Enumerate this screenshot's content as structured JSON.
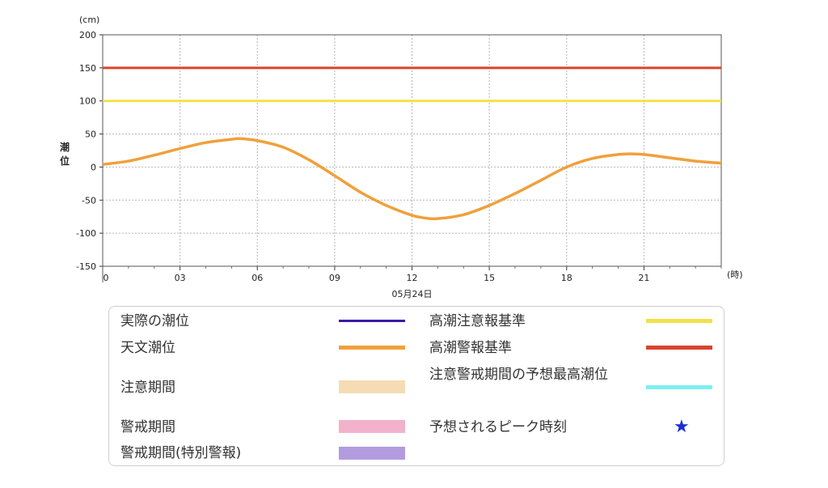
{
  "chart_data": {
    "type": "line",
    "ylabel": "潮位",
    "y_unit": "(cm)",
    "x_unit": "(時)",
    "date_label": "05月24日",
    "ylim": [
      -150,
      200
    ],
    "xlim": [
      0,
      24
    ],
    "y_ticks": [
      200,
      150,
      100,
      50,
      0,
      -50,
      -100,
      -150
    ],
    "x_ticks": [
      {
        "v": 0,
        "label": "0"
      },
      {
        "v": 3,
        "label": "03"
      },
      {
        "v": 6,
        "label": "06"
      },
      {
        "v": 9,
        "label": "09"
      },
      {
        "v": 12,
        "label": "12"
      },
      {
        "v": 15,
        "label": "15"
      },
      {
        "v": 18,
        "label": "18"
      },
      {
        "v": 21,
        "label": "21"
      }
    ],
    "grid": true,
    "thresholds": [
      {
        "name": "高潮警報基準",
        "value": 150,
        "color": "#d9432c"
      },
      {
        "name": "高潮注意報基準",
        "value": 100,
        "color": "#f1e24a"
      }
    ],
    "series": [
      {
        "name": "天文潮位",
        "color": "#f0a03c",
        "x": [
          0,
          1,
          2,
          3,
          4,
          5,
          5.3,
          6,
          7,
          8,
          9,
          10,
          11,
          12,
          12.5,
          13,
          14,
          15,
          16,
          17,
          18,
          19,
          20,
          20.5,
          21,
          22,
          23,
          24
        ],
        "y": [
          4,
          9,
          18,
          28,
          37,
          42,
          43,
          40,
          30,
          11,
          -13,
          -38,
          -58,
          -73,
          -77,
          -78,
          -72,
          -58,
          -40,
          -20,
          0,
          13,
          19,
          20,
          19,
          14,
          9,
          6
        ]
      }
    ]
  },
  "legend": {
    "items": [
      {
        "label": "実際の潮位",
        "color": "#3a1aa6",
        "kind": "line"
      },
      {
        "label": "天文潮位",
        "color": "#f0a03c",
        "kind": "line"
      },
      {
        "label": "注意期間",
        "color": "#f5dcb4",
        "kind": "box"
      },
      {
        "label": "警戒期間",
        "color": "#f2b2cc",
        "kind": "box"
      },
      {
        "label": "警戒期間(特別警報)",
        "color": "#b39be0",
        "kind": "box"
      },
      {
        "label": "高潮注意報基準",
        "color": "#f1e24a",
        "kind": "line"
      },
      {
        "label": "高潮警報基準",
        "color": "#d9432c",
        "kind": "line"
      },
      {
        "label": "注意警戒期間の予想最高潮位",
        "color": "#7cf0f3",
        "kind": "line"
      },
      {
        "label": "予想されるピーク時刻",
        "color": "#1a2fd6",
        "kind": "star",
        "glyph": "★"
      }
    ]
  }
}
